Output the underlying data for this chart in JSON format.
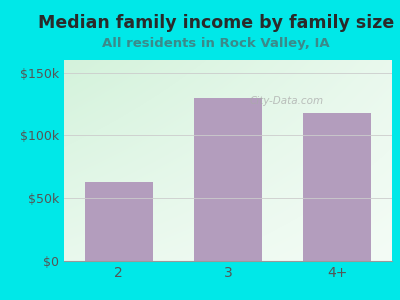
{
  "title": "Median family income by family size",
  "subtitle": "All residents in Rock Valley, IA",
  "categories": [
    "2",
    "3",
    "4+"
  ],
  "values": [
    63000,
    130000,
    118000
  ],
  "bar_color": "#b39dbd",
  "background_color": "#00e8e8",
  "title_color": "#2a2a2a",
  "subtitle_color": "#3a8a8a",
  "tick_color": "#555555",
  "ylim": [
    0,
    160000
  ],
  "yticks": [
    0,
    50000,
    100000,
    150000
  ],
  "ytick_labels": [
    "$0",
    "$50k",
    "$100k",
    "$150k"
  ],
  "title_fontsize": 12.5,
  "subtitle_fontsize": 9.5,
  "watermark": "City-Data.com"
}
